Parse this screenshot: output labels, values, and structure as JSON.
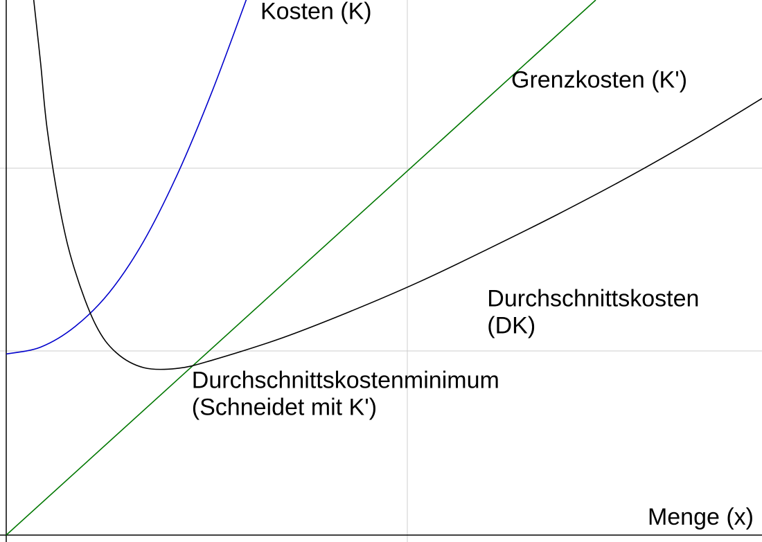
{
  "chart_data": {
    "type": "line",
    "xlabel": "Menge (x)",
    "ylabel": "",
    "xlim": [
      0,
      11
    ],
    "ylim": [
      0,
      7.83
    ],
    "grid": true,
    "colors": {
      "K": "#0000cc",
      "K_prime": "#007700",
      "DK": "#000000",
      "grid": "#cccccc",
      "axis": "#000000"
    },
    "series": [
      {
        "name": "Kosten (K)",
        "id": "K",
        "color": "#0000cc",
        "x": [
          0,
          0.5,
          1.0,
          1.5,
          2.0,
          2.5,
          3.0,
          3.5
        ],
        "y": [
          2.65,
          2.75,
          3.05,
          3.55,
          4.3,
          5.3,
          6.5,
          7.85
        ]
      },
      {
        "name": "Grenzkosten (K')",
        "id": "K_prime",
        "color": "#007700",
        "x": [
          0,
          8.58
        ],
        "y": [
          0,
          7.83
        ]
      },
      {
        "name": "Durchschnittskosten (DK)",
        "id": "DK",
        "color": "#000000",
        "x": [
          0.4,
          0.5,
          0.6,
          0.8,
          1.0,
          1.3,
          1.6,
          2.0,
          2.5,
          3.0,
          4.0,
          5.0,
          6.0,
          7.0,
          8.0,
          9.0,
          10.0,
          11.0
        ],
        "y": [
          7.83,
          6.91,
          5.91,
          4.68,
          3.87,
          3.08,
          2.67,
          2.45,
          2.44,
          2.56,
          2.88,
          3.27,
          3.7,
          4.18,
          4.68,
          5.21,
          5.78,
          6.39
        ]
      }
    ],
    "annotations": [
      {
        "id": "label_K",
        "lines": [
          "Kosten (K)"
        ],
        "x": 3.7,
        "y": 7.55
      },
      {
        "id": "label_K_prime",
        "lines": [
          "Grenzkosten (K')"
        ],
        "x": 7.35,
        "y": 6.55
      },
      {
        "id": "label_DK",
        "lines": [
          "Durchschnittskosten",
          "(DK)"
        ],
        "x": 7.0,
        "y": 3.35
      },
      {
        "id": "label_min",
        "lines": [
          "Durchschnittskostenminimum",
          "(Schneidet mit K')"
        ],
        "x": 2.7,
        "y": 2.15
      }
    ]
  }
}
